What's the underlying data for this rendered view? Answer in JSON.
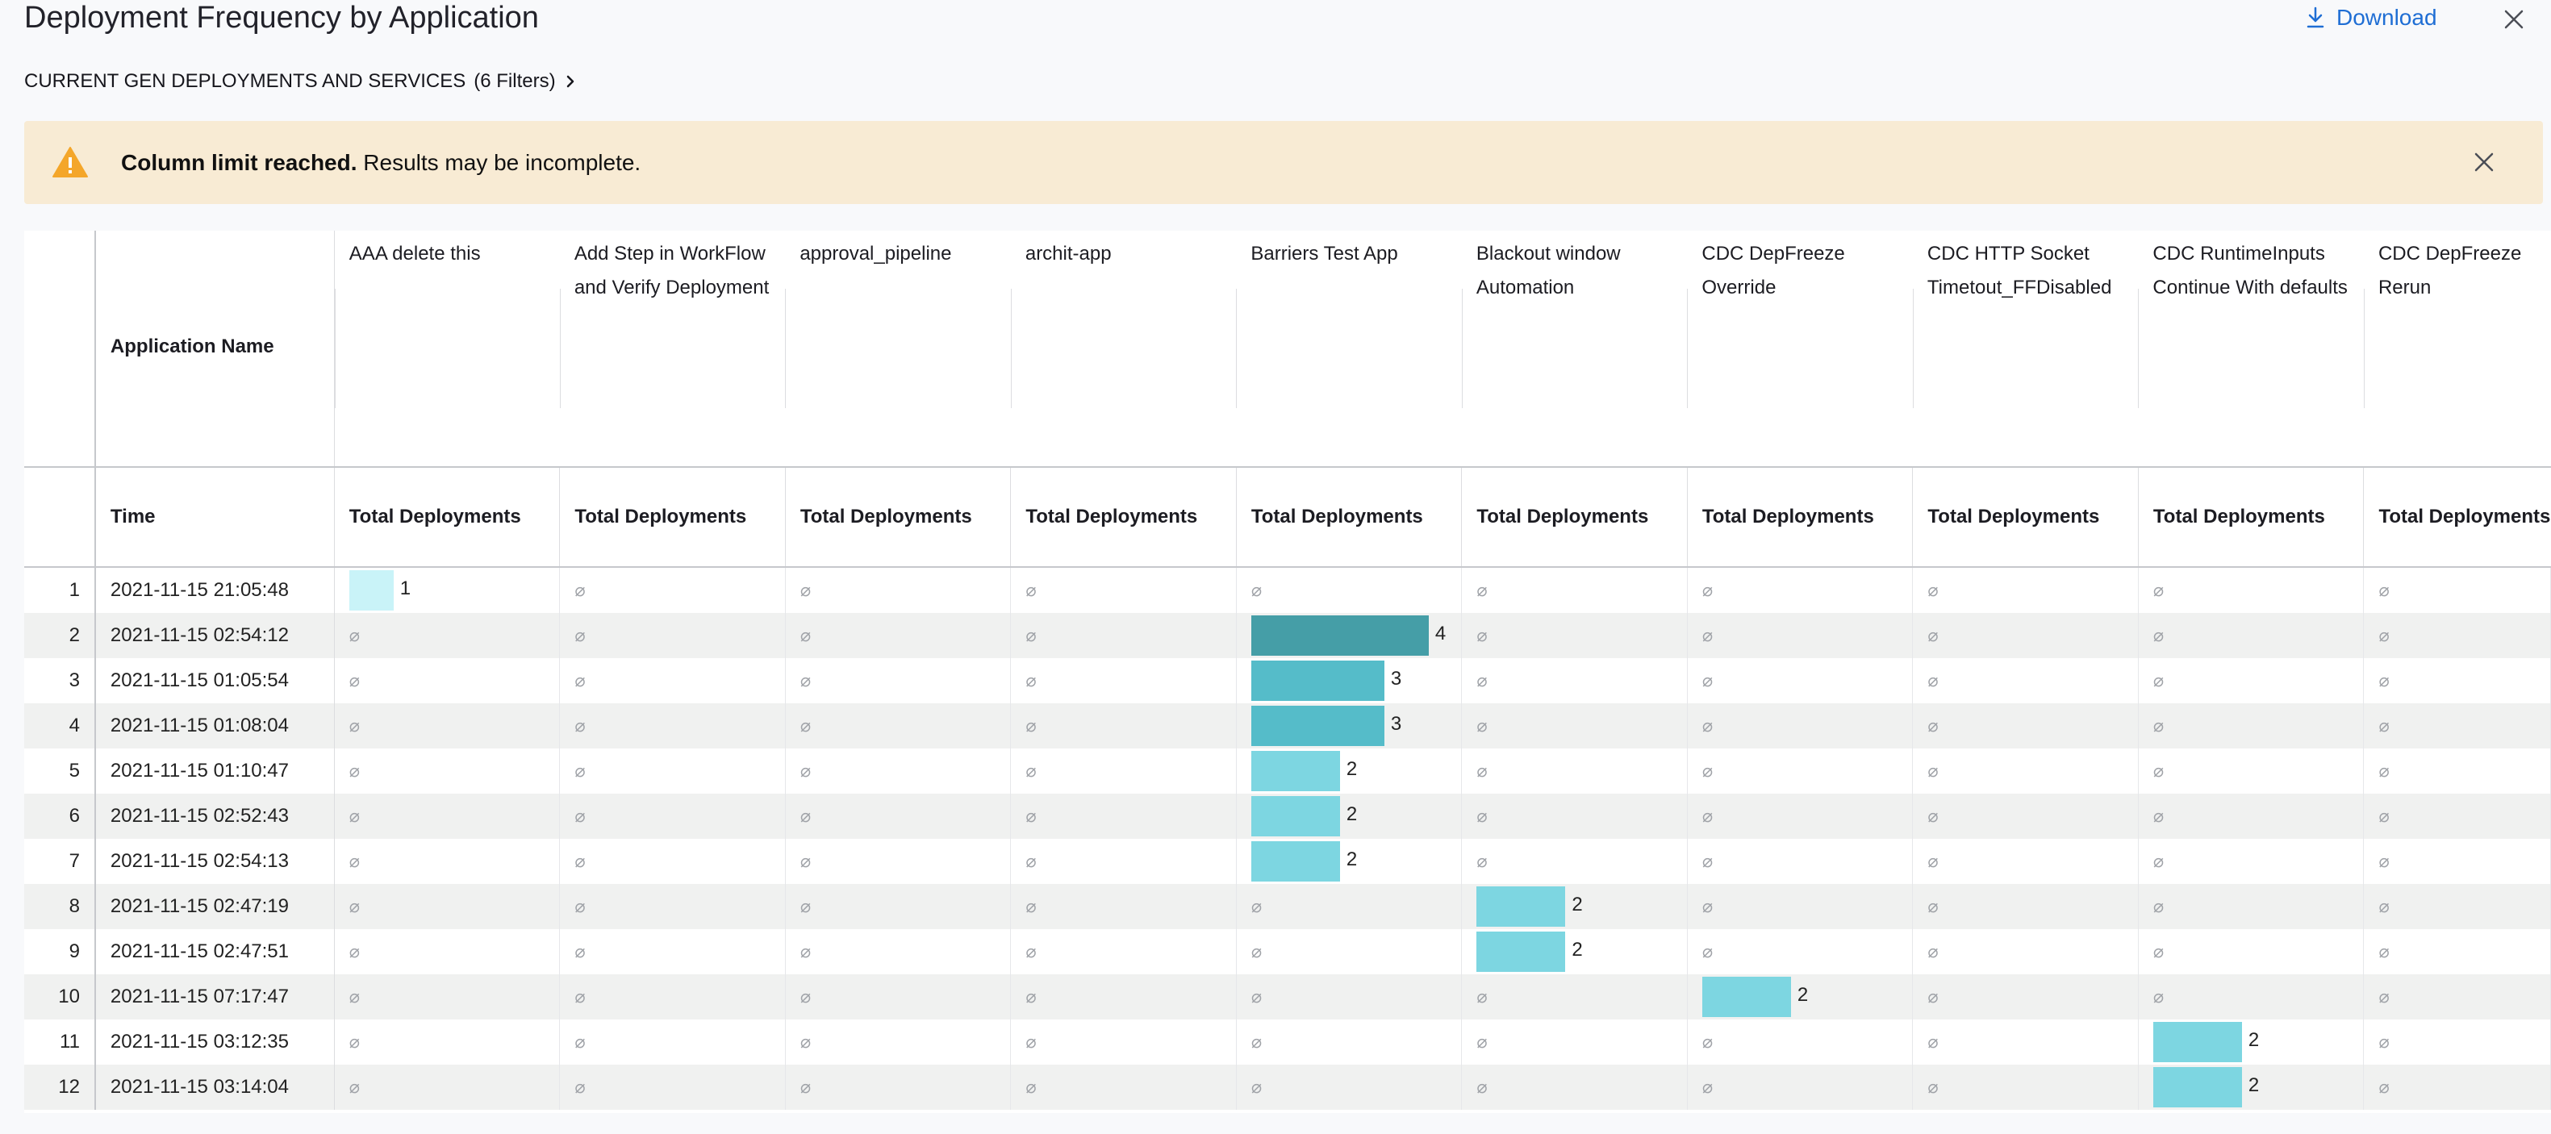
{
  "header": {
    "title": "Deployment Frequency by Application",
    "download_label": "Download",
    "subtitle": "CURRENT GEN DEPLOYMENTS AND SERVICES",
    "filters": "(6 Filters)"
  },
  "banner": {
    "strong": "Column limit reached.",
    "text": " Results may be incomplete."
  },
  "table": {
    "row_header_app": "Application Name",
    "row_header_time": "Time",
    "apps": [
      "AAA delete this",
      "Add Step in WorkFlow and Verify Deployment",
      "approval_pipeline",
      "archit-app",
      "Barriers Test App",
      "Blackout window Automation",
      "CDC DepFreeze Override",
      "CDC HTTP Socket Timetout_FFDisabled",
      "CDC RuntimeInputs Continue With defaults",
      "CDC DepFreeze Rerun"
    ],
    "metric_labels": [
      "Total Deployments",
      "Total Deployments",
      "Total Deployments",
      "Total Deployments",
      "Total Deployments",
      "Total Deployments",
      "Total Deployments",
      "Total Deployments",
      "Total Deployments",
      "Total Deployments"
    ],
    "null_symbol": "⌀",
    "rows": [
      {
        "idx": "1",
        "time": "2021-11-15 21:05:48",
        "app_index": 0,
        "value": 1
      },
      {
        "idx": "2",
        "time": "2021-11-15 02:54:12",
        "app_index": 4,
        "value": 4
      },
      {
        "idx": "3",
        "time": "2021-11-15 01:05:54",
        "app_index": 4,
        "value": 3
      },
      {
        "idx": "4",
        "time": "2021-11-15 01:08:04",
        "app_index": 4,
        "value": 3
      },
      {
        "idx": "5",
        "time": "2021-11-15 01:10:47",
        "app_index": 4,
        "value": 2
      },
      {
        "idx": "6",
        "time": "2021-11-15 02:52:43",
        "app_index": 4,
        "value": 2
      },
      {
        "idx": "7",
        "time": "2021-11-15 02:54:13",
        "app_index": 4,
        "value": 2
      },
      {
        "idx": "8",
        "time": "2021-11-15 02:47:19",
        "app_index": 5,
        "value": 2
      },
      {
        "idx": "9",
        "time": "2021-11-15 02:47:51",
        "app_index": 5,
        "value": 2
      },
      {
        "idx": "10",
        "time": "2021-11-15 07:17:47",
        "app_index": 6,
        "value": 2
      },
      {
        "idx": "11",
        "time": "2021-11-15 03:12:35",
        "app_index": 8,
        "value": 2
      },
      {
        "idx": "12",
        "time": "2021-11-15 03:14:04",
        "app_index": 8,
        "value": 2
      }
    ],
    "value_max": 4,
    "colors": {
      "v1": "#c9f3f8",
      "v2": "#7dd6e1",
      "v3": "#55bcc9",
      "v4": "#459ea7"
    }
  }
}
